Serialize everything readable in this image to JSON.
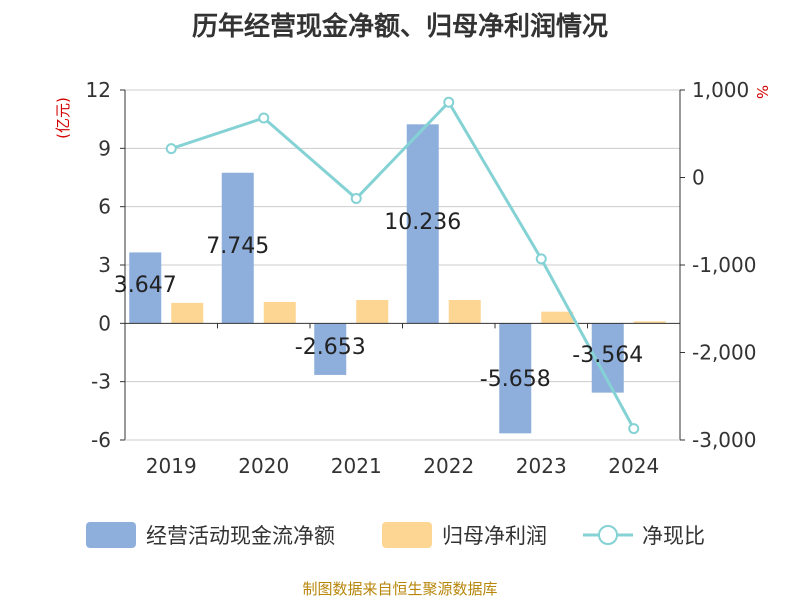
{
  "title": "历年经营现金净额、归母净利润情况",
  "footer": "制图数据来自恒生聚源数据库",
  "chart_data": {
    "type": "bar",
    "categories": [
      "2019",
      "2020",
      "2021",
      "2022",
      "2023",
      "2024"
    ],
    "y_left": {
      "unit_label": "(亿元)",
      "ylim": [
        -6,
        12
      ],
      "ticks": [
        "12",
        "9",
        "6",
        "3",
        "0",
        "-3",
        "-6"
      ]
    },
    "y_right": {
      "unit_label": "%",
      "ylim": [
        -3000,
        1000
      ],
      "ticks": [
        "1,000",
        "0",
        "-1,000",
        "-2,000",
        "-3,000"
      ]
    },
    "series": [
      {
        "name": "经营活动现金流净额",
        "type": "bar",
        "axis": "left",
        "color": "#8eaedb",
        "values": [
          3.647,
          7.745,
          -2.653,
          10.236,
          -5.658,
          -3.564
        ],
        "labels": [
          "3.647",
          "7.745",
          "-2.653",
          "10.236",
          "-5.658",
          "-3.564"
        ]
      },
      {
        "name": "归母净利润",
        "type": "bar",
        "axis": "left",
        "color": "#fdd693",
        "values": [
          1.05,
          1.1,
          1.2,
          1.2,
          0.6,
          0.1
        ]
      },
      {
        "name": "净现比",
        "type": "line",
        "axis": "right",
        "color": "#85d2d5",
        "values": [
          330,
          680,
          -240,
          860,
          -930,
          -2870
        ]
      }
    ],
    "grid": true,
    "legend": "bottom"
  }
}
